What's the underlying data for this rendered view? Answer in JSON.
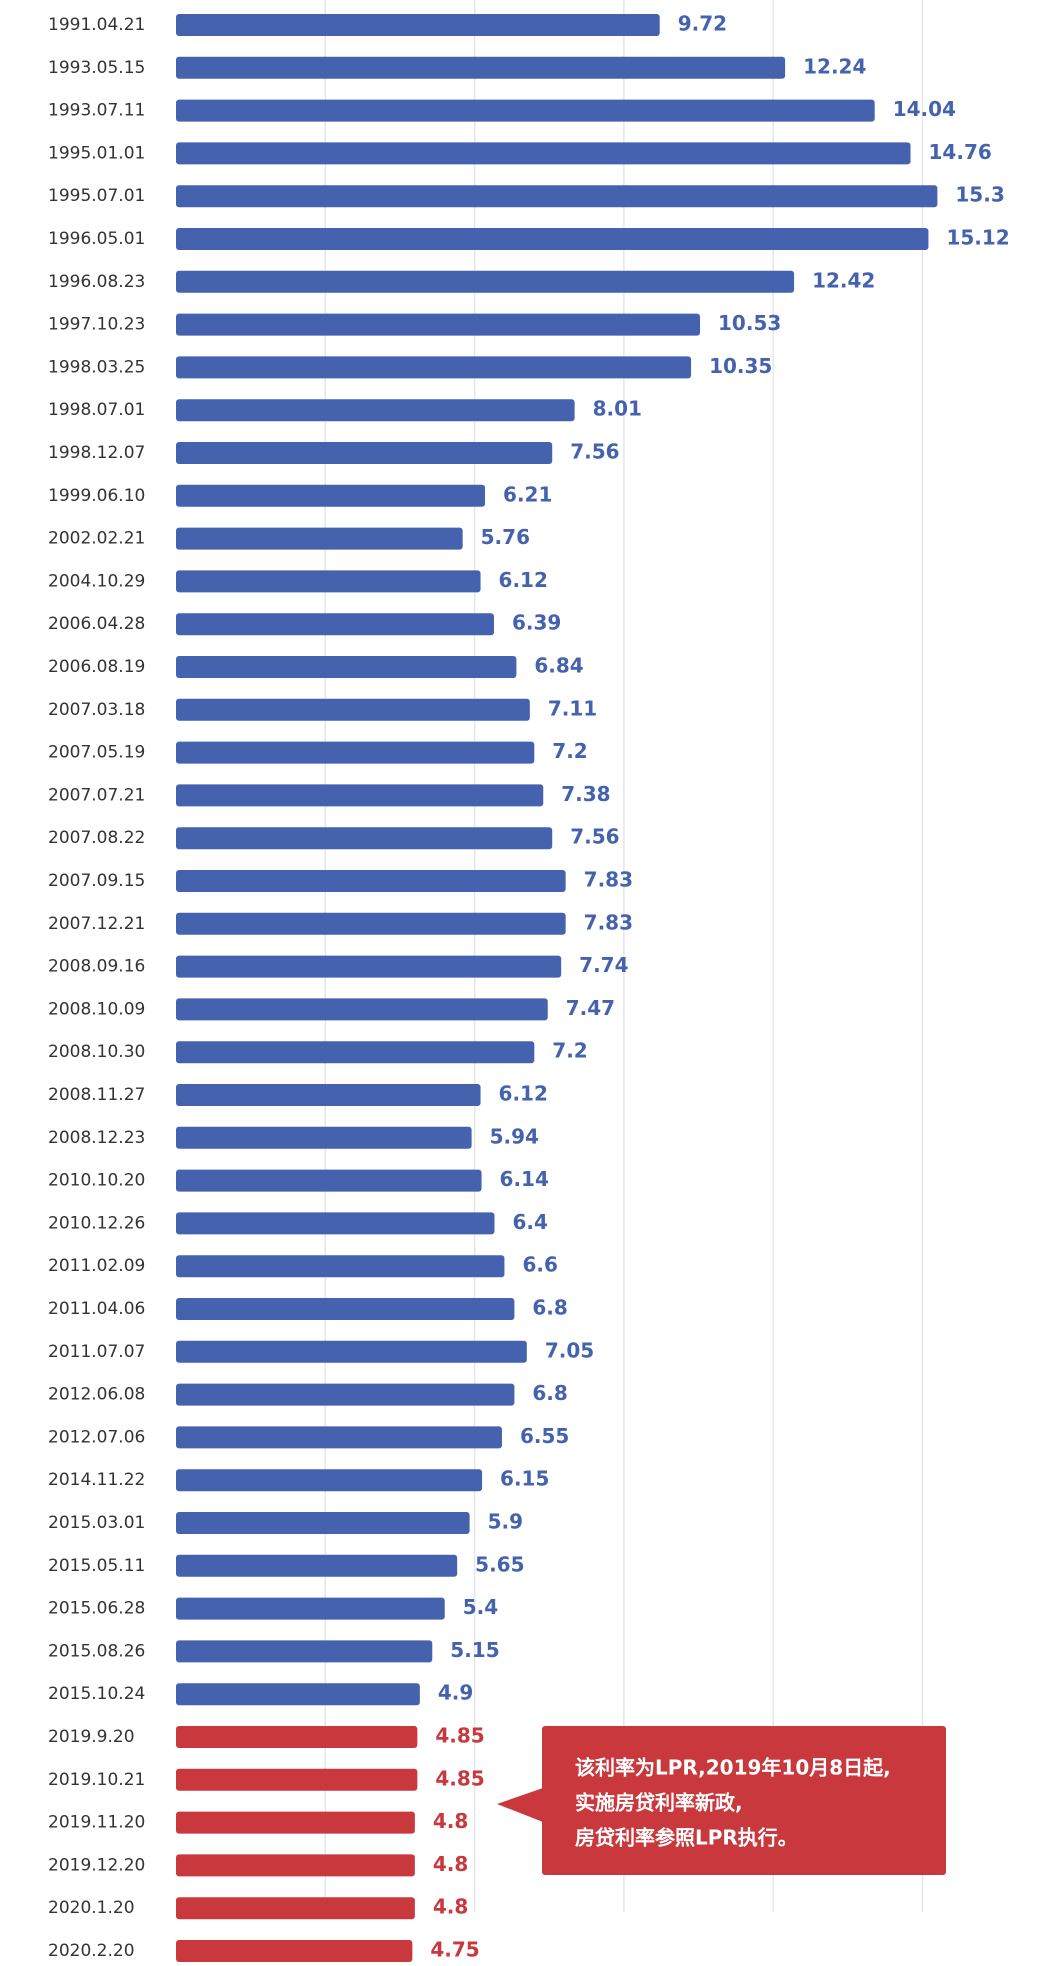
{
  "chart_data": {
    "type": "barh",
    "categories": [
      "1991.04.21",
      "1993.05.15",
      "1993.07.11",
      "1995.01.01",
      "1995.07.01",
      "1996.05.01",
      "1996.08.23",
      "1997.10.23",
      "1998.03.25",
      "1998.07.01",
      "1998.12.07",
      "1999.06.10",
      "2002.02.21",
      "2004.10.29",
      "2006.04.28",
      "2006.08.19",
      "2007.03.18",
      "2007.05.19",
      "2007.07.21",
      "2007.08.22",
      "2007.09.15",
      "2007.12.21",
      "2008.09.16",
      "2008.10.09",
      "2008.10.30",
      "2008.11.27",
      "2008.12.23",
      "2010.10.20",
      "2010.12.26",
      "2011.02.09",
      "2011.04.06",
      "2011.07.07",
      "2012.06.08",
      "2012.07.06",
      "2014.11.22",
      "2015.03.01",
      "2015.05.11",
      "2015.06.28",
      "2015.08.26",
      "2015.10.24",
      "2019.9.20",
      "2019.10.21",
      "2019.11.20",
      "2019.12.20",
      "2020.1.20",
      "2020.2.20"
    ],
    "values": [
      9.72,
      12.24,
      14.04,
      14.76,
      15.3,
      15.12,
      12.42,
      10.53,
      10.35,
      8.01,
      7.56,
      6.21,
      5.76,
      6.12,
      6.39,
      6.84,
      7.11,
      7.2,
      7.38,
      7.56,
      7.83,
      7.83,
      7.74,
      7.47,
      7.2,
      6.12,
      5.94,
      6.14,
      6.4,
      6.6,
      6.8,
      7.05,
      6.8,
      6.55,
      6.15,
      5.9,
      5.65,
      5.4,
      5.15,
      4.9,
      4.85,
      4.85,
      4.8,
      4.8,
      4.8,
      4.75
    ],
    "bar_colors": [
      "#4462ad",
      "#4462ad",
      "#4462ad",
      "#4462ad",
      "#4462ad",
      "#4462ad",
      "#4462ad",
      "#4462ad",
      "#4462ad",
      "#4462ad",
      "#4462ad",
      "#4462ad",
      "#4462ad",
      "#4462ad",
      "#4462ad",
      "#4462ad",
      "#4462ad",
      "#4462ad",
      "#4462ad",
      "#4462ad",
      "#4462ad",
      "#4462ad",
      "#4462ad",
      "#4462ad",
      "#4462ad",
      "#4462ad",
      "#4462ad",
      "#4462ad",
      "#4462ad",
      "#4462ad",
      "#4462ad",
      "#4462ad",
      "#4462ad",
      "#4462ad",
      "#4462ad",
      "#4462ad",
      "#4462ad",
      "#4462ad",
      "#4462ad",
      "#4462ad",
      "#c8383d",
      "#c8383d",
      "#c8383d",
      "#c8383d",
      "#c8383d",
      "#c8383d"
    ],
    "xlim": [
      0,
      17
    ],
    "xticks": [
      3,
      6,
      9,
      12,
      15
    ],
    "grid": true,
    "annotation": [
      "该利率为LPR,2019年10月8日起,",
      "实施房贷利率新政,",
      "房贷利率参照LPR执行。"
    ],
    "annotation_color": "#c8383d"
  }
}
